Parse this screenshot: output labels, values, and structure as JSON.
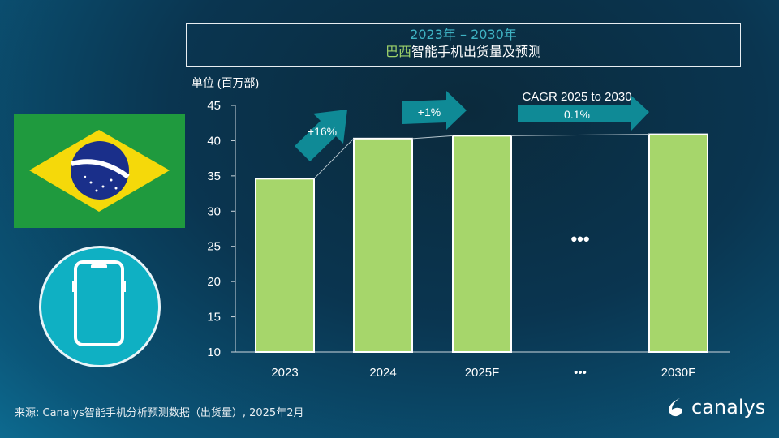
{
  "header": {
    "title_years": "2023年 – 2030年",
    "title_country": "巴西",
    "title_rest": "智能手机出货量及预测"
  },
  "chart_data": {
    "type": "bar",
    "unit_label": "单位 (百万部)",
    "categories": [
      "2023",
      "2024",
      "2025F",
      "…",
      "2030F"
    ],
    "values": [
      34.6,
      40.3,
      40.7,
      null,
      40.9
    ],
    "ylim": [
      10,
      45
    ],
    "yticks": [
      10,
      15,
      20,
      25,
      30,
      35,
      40,
      45
    ],
    "bar_color": "#a6d66b",
    "annotations": [
      {
        "text": "+16%",
        "from": "2023",
        "to": "2024"
      },
      {
        "text": "+1%",
        "from": "2024",
        "to": "2025F"
      },
      {
        "text": "CAGR 2025 to 2030",
        "value": "0.1%",
        "from": "2025F",
        "to": "2030F"
      }
    ],
    "gap_marker": "•••"
  },
  "footer": {
    "source": "来源: Canalys智能手机分析预测数据（出货量）, 2025年2月",
    "logo": "canalys"
  },
  "colors": {
    "arrow": "#0f8a96",
    "accent_green": "#9ed36a",
    "title_teal": "#3fb3c4"
  },
  "icons": {
    "flag": "brazil-flag",
    "phone": "smartphone-icon"
  }
}
